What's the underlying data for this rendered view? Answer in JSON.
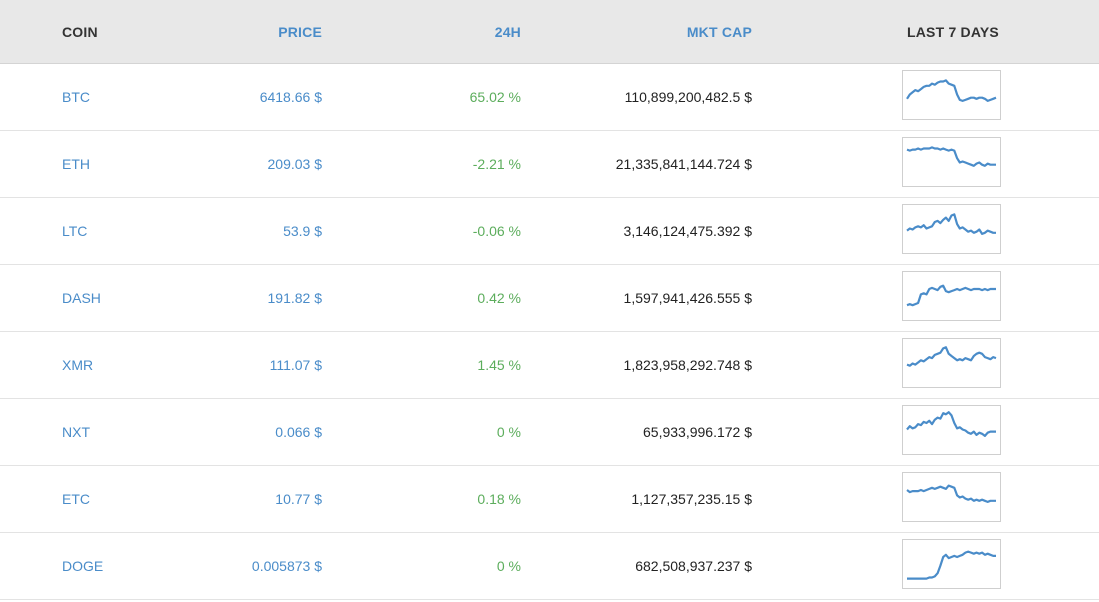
{
  "headers": {
    "coin": "COIN",
    "price": "PRICE",
    "change": "24H",
    "mktcap": "MKT CAP",
    "last7": "LAST 7 DAYS"
  },
  "colors": {
    "link_blue": "#4a8cc9",
    "positive_green": "#5cad5c",
    "sparkline": "#4a8cc9",
    "header_bg": "#e8e8e8"
  },
  "rows": [
    {
      "coin": "BTC",
      "price": "6418.66 $",
      "change": "65.02 %",
      "mktcap": "110,899,200,482.5 $",
      "spark": [
        30,
        34,
        36,
        38,
        37,
        39,
        41,
        42,
        42,
        44,
        43,
        45,
        46,
        46,
        47,
        44,
        43,
        42,
        34,
        29,
        28,
        29,
        30,
        31,
        31,
        30,
        31,
        31,
        30,
        28,
        29,
        30,
        31
      ]
    },
    {
      "coin": "ETH",
      "price": "209.03 $",
      "change": "-2.21 %",
      "mktcap": "21,335,841,144.724 $",
      "spark": [
        45,
        44,
        45,
        45,
        46,
        45,
        46,
        46,
        46,
        47,
        46,
        46,
        45,
        46,
        45,
        44,
        45,
        44,
        37,
        33,
        34,
        33,
        32,
        31,
        30,
        32,
        33,
        31,
        30,
        32,
        31,
        31,
        31
      ]
    },
    {
      "coin": "LTC",
      "price": "53.9 $",
      "change": "-0.06 %",
      "mktcap": "3,146,124,475.392 $",
      "spark": [
        32,
        34,
        33,
        35,
        36,
        35,
        37,
        34,
        35,
        36,
        40,
        41,
        39,
        42,
        44,
        41,
        46,
        47,
        38,
        34,
        35,
        33,
        31,
        32,
        30,
        31,
        33,
        29,
        30,
        32,
        31,
        30,
        30
      ]
    },
    {
      "coin": "DASH",
      "price": "191.82 $",
      "change": "0.42 %",
      "mktcap": "1,597,941,426.555 $",
      "spark": [
        25,
        26,
        25,
        26,
        27,
        35,
        36,
        35,
        40,
        41,
        40,
        39,
        42,
        43,
        38,
        37,
        38,
        39,
        40,
        39,
        40,
        41,
        40,
        39,
        40,
        40,
        40,
        39,
        40,
        39,
        40,
        40,
        40
      ]
    },
    {
      "coin": "XMR",
      "price": "111.07 $",
      "change": "1.45 %",
      "mktcap": "1,823,958,292.748 $",
      "spark": [
        32,
        31,
        33,
        32,
        34,
        36,
        35,
        37,
        39,
        38,
        41,
        42,
        43,
        47,
        48,
        42,
        40,
        38,
        36,
        37,
        36,
        38,
        37,
        36,
        40,
        42,
        43,
        42,
        39,
        38,
        37,
        39,
        38
      ]
    },
    {
      "coin": "NXT",
      "price": "0.066 $",
      "change": "0 %",
      "mktcap": "65,933,996.172 $",
      "spark": [
        34,
        37,
        35,
        36,
        39,
        38,
        41,
        40,
        42,
        39,
        43,
        45,
        44,
        49,
        48,
        50,
        47,
        40,
        35,
        36,
        34,
        33,
        31,
        30,
        32,
        29,
        31,
        30,
        28,
        31,
        32,
        32,
        32
      ]
    },
    {
      "coin": "ETC",
      "price": "10.77 $",
      "change": "0.18 %",
      "mktcap": "1,127,357,235.15 $",
      "spark": [
        40,
        38,
        39,
        39,
        39,
        40,
        39,
        40,
        41,
        42,
        41,
        42,
        43,
        42,
        41,
        44,
        43,
        42,
        35,
        33,
        34,
        32,
        31,
        32,
        30,
        31,
        30,
        31,
        30,
        29,
        30,
        30,
        30
      ]
    },
    {
      "coin": "DOGE",
      "price": "0.005873 $",
      "change": "0 %",
      "mktcap": "682,508,937.237 $",
      "spark": [
        20,
        20,
        20,
        20,
        20,
        20,
        20,
        20,
        21,
        21,
        22,
        25,
        32,
        40,
        42,
        39,
        40,
        41,
        40,
        41,
        42,
        44,
        45,
        44,
        43,
        44,
        43,
        44,
        42,
        43,
        42,
        41,
        41
      ]
    }
  ]
}
